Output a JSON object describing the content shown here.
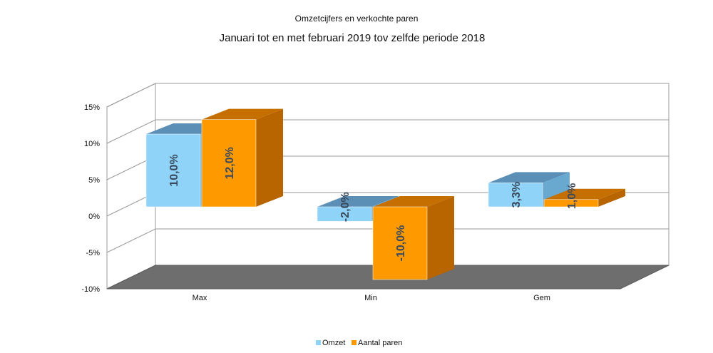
{
  "chart_data": {
    "type": "bar",
    "title": "Omzetcijfers en verkochte paren",
    "subtitle": "Januari tot en met februari 2019 tov zelfde periode 2018",
    "categories": [
      "Max",
      "Min",
      "Gem"
    ],
    "series": [
      {
        "name": "Omzet",
        "values": [
          10.0,
          -2.0,
          3.3
        ],
        "labels": [
          "10,0%",
          "-2,0%",
          "3,3%"
        ],
        "color": "#8fd3f8",
        "top_color": "#5b8fb6",
        "side_color": "#6aa9cf"
      },
      {
        "name": "Aantal paren",
        "values": [
          12.0,
          -10.0,
          1.0
        ],
        "labels": [
          "12,0%",
          "-10,0%",
          "1,0%"
        ],
        "color": "#ff9900",
        "top_color": "#c46f00",
        "side_color": "#b86500"
      }
    ],
    "yticks": [
      "15%",
      "10%",
      "5%",
      "0%",
      "-5%",
      "-10%"
    ],
    "ylim": [
      -10,
      15
    ],
    "grid": true,
    "legend": "bottom"
  }
}
